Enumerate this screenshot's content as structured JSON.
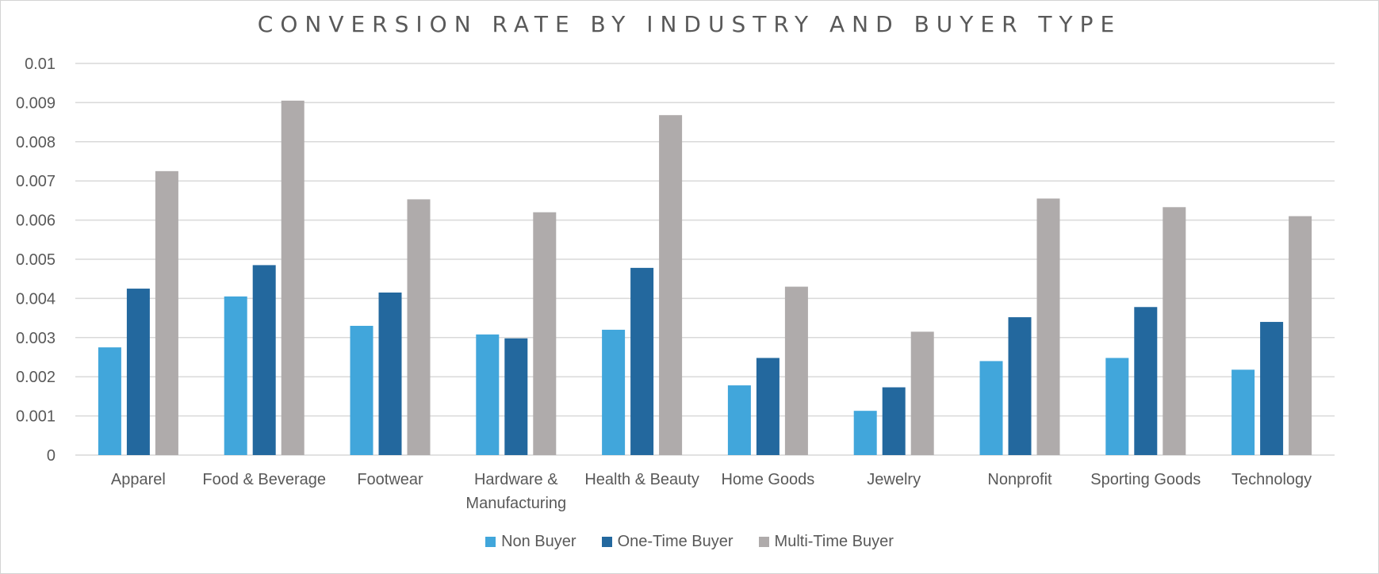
{
  "chart_data": {
    "type": "bar",
    "title": "CONVERSION RATE BY INDUSTRY AND BUYER TYPE",
    "xlabel": "",
    "ylabel": "",
    "ylim": [
      0,
      0.01
    ],
    "yticks": [
      "0",
      "0.001",
      "0.002",
      "0.003",
      "0.004",
      "0.005",
      "0.006",
      "0.007",
      "0.008",
      "0.009",
      "0.01"
    ],
    "grid": true,
    "legend_position": "bottom",
    "categories": [
      [
        "Apparel"
      ],
      [
        "Food & Beverage"
      ],
      [
        "Footwear"
      ],
      [
        "Hardware &",
        "Manufacturing"
      ],
      [
        "Health & Beauty"
      ],
      [
        "Home Goods"
      ],
      [
        "Jewelry"
      ],
      [
        "Nonprofit"
      ],
      [
        "Sporting Goods"
      ],
      [
        "Technology"
      ]
    ],
    "series": [
      {
        "name": "Non Buyer",
        "color": "#41a6db",
        "values": [
          0.00275,
          0.00405,
          0.0033,
          0.00308,
          0.0032,
          0.00178,
          0.00113,
          0.0024,
          0.00248,
          0.00218
        ]
      },
      {
        "name": "One-Time Buyer",
        "color": "#23689e",
        "values": [
          0.00425,
          0.00485,
          0.00415,
          0.00298,
          0.00478,
          0.00248,
          0.00173,
          0.00352,
          0.00378,
          0.0034
        ]
      },
      {
        "name": "Multi-Time Buyer",
        "color": "#afabab",
        "values": [
          0.00725,
          0.00905,
          0.00653,
          0.0062,
          0.00868,
          0.0043,
          0.00315,
          0.00655,
          0.00633,
          0.0061
        ]
      }
    ]
  }
}
